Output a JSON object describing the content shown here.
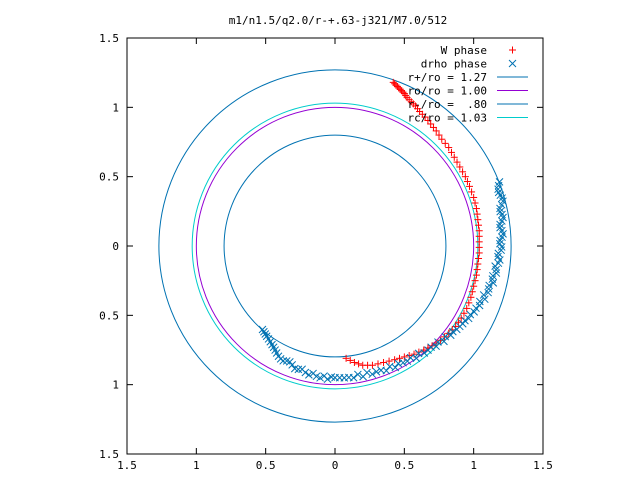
{
  "chart_data": {
    "type": "scatter",
    "title": "m1/n1.5/q2.0/r-+.63-j321/M7.0/512",
    "xlabel": "",
    "ylabel": "",
    "xlim": [
      -1.5,
      1.5
    ],
    "ylim": [
      -1.5,
      1.5
    ],
    "x_tick_values": [
      -1.5,
      -1,
      -0.5,
      0,
      0.5,
      1,
      1.5
    ],
    "x_tick_labels": [
      "1.5",
      "1",
      "0.5",
      "0",
      "0.5",
      "1",
      "1.5"
    ],
    "y_tick_values": [
      1.5,
      1,
      0.5,
      0,
      -0.5,
      -1,
      -1.5
    ],
    "y_tick_labels": [
      "1.5",
      "1",
      "0.5",
      "0",
      "0.5",
      "1",
      "1.5"
    ],
    "grid": false,
    "legend_position": "top-right",
    "circles": [
      {
        "name": "r+/ro = 1.27",
        "radius": 1.27,
        "color": "#0072b2"
      },
      {
        "name": "ro/ro = 1.00",
        "radius": 1.0,
        "color": "#9400d3"
      },
      {
        "name": "r-/ro =  .80",
        "radius": 0.8,
        "color": "#0072b2"
      },
      {
        "name": "rc/ro = 1.03",
        "radius": 1.03,
        "color": "#00cccc"
      }
    ],
    "series": [
      {
        "name": "W phase",
        "marker": "+",
        "color": "#ff0000",
        "points": [
          [
            0.42,
            1.18
          ],
          [
            0.44,
            1.16
          ],
          [
            0.46,
            1.14
          ],
          [
            0.48,
            1.12
          ],
          [
            0.5,
            1.1
          ],
          [
            0.52,
            1.07
          ],
          [
            0.55,
            1.04
          ],
          [
            0.58,
            1.01
          ],
          [
            0.61,
            0.97
          ],
          [
            0.65,
            0.93
          ],
          [
            0.69,
            0.88
          ],
          [
            0.73,
            0.83
          ],
          [
            0.77,
            0.77
          ],
          [
            0.82,
            0.71
          ],
          [
            0.86,
            0.64
          ],
          [
            0.9,
            0.57
          ],
          [
            0.94,
            0.5
          ],
          [
            0.97,
            0.43
          ],
          [
            1.0,
            0.35
          ],
          [
            1.02,
            0.27
          ],
          [
            1.03,
            0.19
          ],
          [
            1.04,
            0.11
          ],
          [
            1.04,
            0.03
          ],
          [
            1.04,
            -0.05
          ],
          [
            1.03,
            -0.13
          ],
          [
            1.02,
            -0.21
          ],
          [
            1.0,
            -0.29
          ],
          [
            0.98,
            -0.37
          ],
          [
            0.95,
            -0.45
          ],
          [
            0.91,
            -0.52
          ],
          [
            0.87,
            -0.58
          ],
          [
            0.82,
            -0.63
          ],
          [
            0.76,
            -0.68
          ],
          [
            0.7,
            -0.72
          ],
          [
            0.64,
            -0.75
          ],
          [
            0.57,
            -0.78
          ],
          [
            0.5,
            -0.8
          ],
          [
            0.43,
            -0.82
          ],
          [
            0.35,
            -0.84
          ],
          [
            0.27,
            -0.86
          ],
          [
            0.2,
            -0.86
          ],
          [
            0.14,
            -0.84
          ],
          [
            0.08,
            -0.81
          ]
        ]
      },
      {
        "name": "drho phase",
        "marker": "x",
        "color": "#0072b2",
        "points": [
          [
            1.18,
            0.46
          ],
          [
            1.19,
            0.39
          ],
          [
            1.2,
            0.32
          ],
          [
            1.2,
            0.25
          ],
          [
            1.2,
            0.18
          ],
          [
            1.2,
            0.11
          ],
          [
            1.2,
            0.04
          ],
          [
            1.19,
            -0.03
          ],
          [
            1.18,
            -0.1
          ],
          [
            1.16,
            -0.17
          ],
          [
            1.14,
            -0.24
          ],
          [
            1.11,
            -0.31
          ],
          [
            1.07,
            -0.38
          ],
          [
            1.02,
            -0.45
          ],
          [
            0.96,
            -0.52
          ],
          [
            0.9,
            -0.58
          ],
          [
            0.83,
            -0.64
          ],
          [
            0.75,
            -0.7
          ],
          [
            0.67,
            -0.75
          ],
          [
            0.58,
            -0.8
          ],
          [
            0.49,
            -0.84
          ],
          [
            0.4,
            -0.88
          ],
          [
            0.3,
            -0.91
          ],
          [
            0.2,
            -0.93
          ],
          [
            0.1,
            -0.95
          ],
          [
            0.0,
            -0.95
          ],
          [
            -0.08,
            -0.95
          ],
          [
            -0.16,
            -0.93
          ],
          [
            -0.24,
            -0.9
          ],
          [
            -0.31,
            -0.86
          ],
          [
            -0.37,
            -0.82
          ],
          [
            -0.42,
            -0.77
          ],
          [
            -0.46,
            -0.72
          ],
          [
            -0.5,
            -0.66
          ],
          [
            -0.53,
            -0.61
          ]
        ]
      }
    ]
  }
}
